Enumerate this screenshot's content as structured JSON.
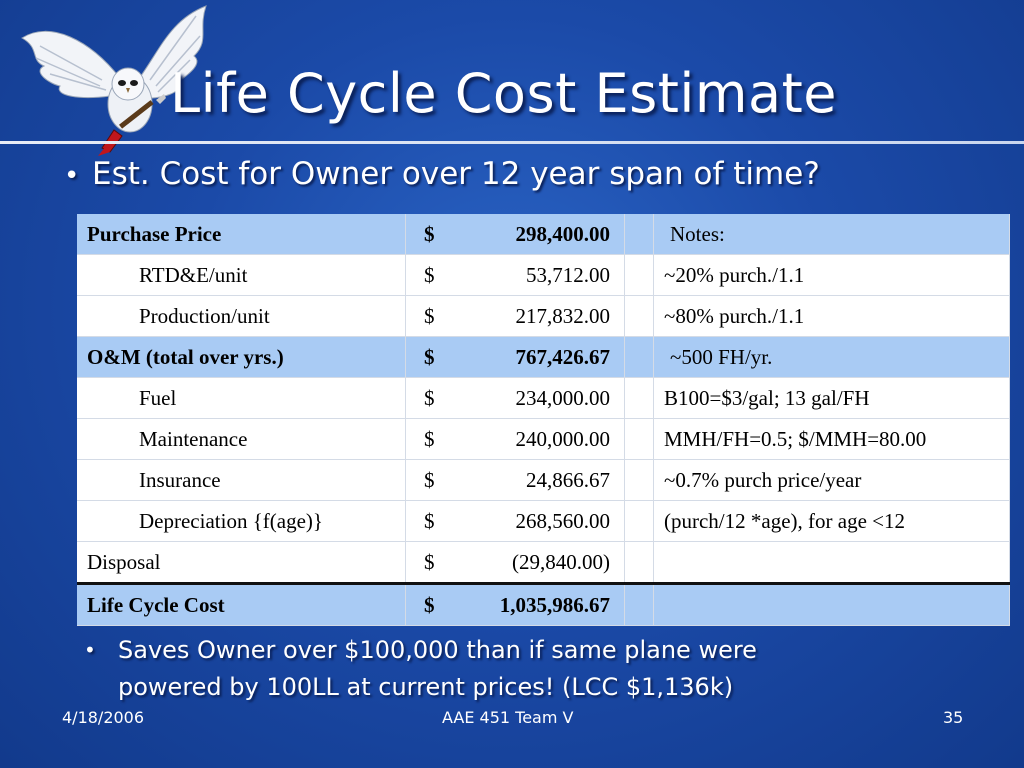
{
  "slide": {
    "title": "Life Cycle Cost Estimate",
    "bullet1": "Est. Cost for Owner over 12 year span of time?",
    "bullet2_line1": "Saves Owner over $100,000 than if same plane were",
    "bullet2_line2": "powered by 100LL at current prices! (LCC $1,136k)",
    "bullet_char": "•",
    "logo_icon": "owl-with-guitar-logo"
  },
  "table": {
    "rows": [
      {
        "label": "Purchase Price",
        "currency": "$",
        "amount": "298,400.00",
        "note": "Notes:",
        "style": "highlight",
        "indent": false
      },
      {
        "label": "RTD&E/unit",
        "currency": "$",
        "amount": "53,712.00",
        "note": "~20% purch./1.1",
        "style": "plain",
        "indent": true
      },
      {
        "label": "Production/unit",
        "currency": "$",
        "amount": "217,832.00",
        "note": "~80% purch./1.1",
        "style": "plain",
        "indent": true
      },
      {
        "label": "O&M (total over yrs.)",
        "currency": "$",
        "amount": "767,426.67",
        "note": "~500 FH/yr.",
        "style": "highlight",
        "indent": false
      },
      {
        "label": "Fuel",
        "currency": "$",
        "amount": "234,000.00",
        "note": "B100=$3/gal; 13 gal/FH",
        "style": "plain",
        "indent": true
      },
      {
        "label": "Maintenance",
        "currency": "$",
        "amount": "240,000.00",
        "note": "MMH/FH=0.5; $/MMH=80.00",
        "style": "plain",
        "indent": true
      },
      {
        "label": "Insurance",
        "currency": "$",
        "amount": "24,866.67",
        "note": "~0.7% purch price/year",
        "style": "plain",
        "indent": true
      },
      {
        "label": "Depreciation {f(age)}",
        "currency": "$",
        "amount": "268,560.00",
        "note": "(purch/12 *age), for age <12",
        "style": "plain",
        "indent": true
      },
      {
        "label": "Disposal",
        "currency": "$",
        "amount": "(29,840.00)",
        "note": "",
        "style": "plain",
        "indent": false
      },
      {
        "label": "Life Cycle Cost",
        "currency": "$",
        "amount": "1,035,986.67",
        "note": "",
        "style": "total",
        "indent": false
      }
    ]
  },
  "footer": {
    "date": "4/18/2006",
    "center": "AAE 451 Team V",
    "page": "35"
  },
  "colors": {
    "background": "#1b4aa8",
    "row_highlight": "#a9cbf4",
    "text_on_blue": "#ffffff"
  }
}
